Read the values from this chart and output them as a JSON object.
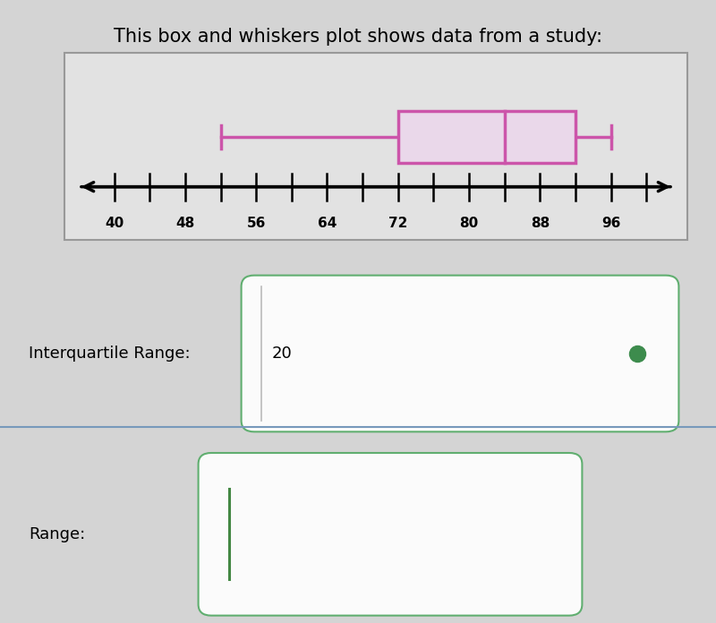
{
  "title": "This box and whiskers plot shows data from a study:",
  "bg_color": "#d4d4d4",
  "number_line": {
    "min": 40,
    "max": 100,
    "tick_step": 4,
    "labels": [
      40,
      48,
      56,
      64,
      72,
      80,
      88,
      96
    ]
  },
  "boxplot": {
    "min": 52,
    "q1": 72,
    "median": 84,
    "q3": 92,
    "max": 96,
    "color": "#cc55aa",
    "linewidth": 2.5
  },
  "iqr_label": "Interquartile Range:",
  "iqr_value": "20",
  "range_label": "Range:",
  "answer_box_color": "#55aa66",
  "separator_color": "#7799bb",
  "dot_color": "#3d8c4d",
  "input_cursor_color": "#448844"
}
